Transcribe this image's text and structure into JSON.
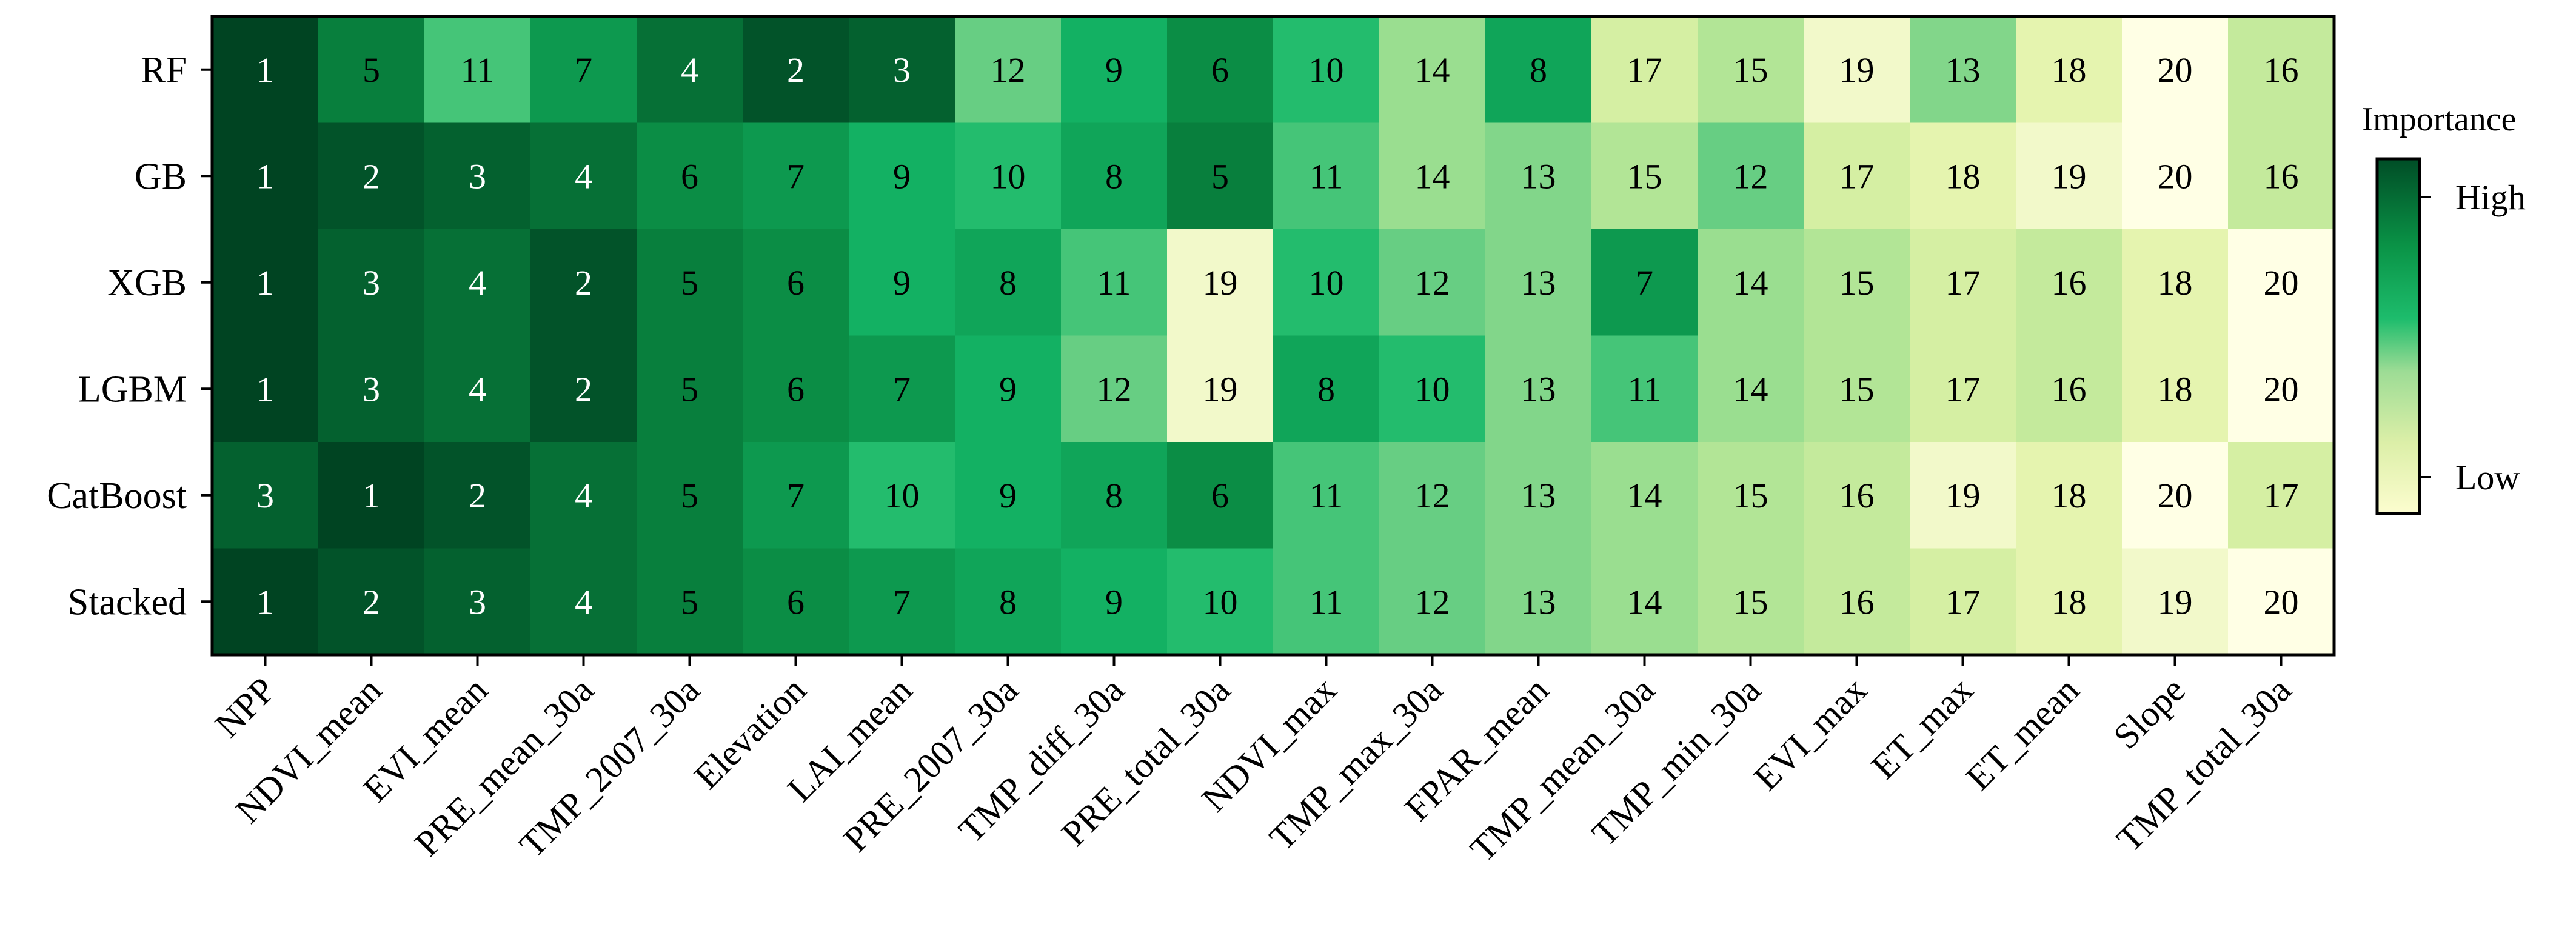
{
  "chart_data": {
    "type": "heatmap",
    "rows": [
      "RF",
      "GB",
      "XGB",
      "LGBM",
      "CatBoost",
      "Stacked"
    ],
    "columns": [
      "NPP",
      "NDVI_mean",
      "EVI_mean",
      "PRE_mean_30a",
      "TMP_2007_30a",
      "Elevation",
      "LAI_mean",
      "PRE_2007_30a",
      "TMP_diff_30a",
      "PRE_total_30a",
      "NDVI_max",
      "TMP_max_30a",
      "FPAR_mean",
      "TMP_mean_30a",
      "TMP_min_30a",
      "EVI_max",
      "ET_max",
      "ET_mean",
      "Slope",
      "TMP_total_30a"
    ],
    "values": [
      [
        1,
        5,
        11,
        7,
        4,
        2,
        3,
        12,
        9,
        6,
        10,
        14,
        8,
        17,
        15,
        19,
        13,
        18,
        20,
        16
      ],
      [
        1,
        2,
        3,
        4,
        6,
        7,
        9,
        10,
        8,
        5,
        11,
        14,
        13,
        15,
        12,
        17,
        18,
        19,
        20,
        16
      ],
      [
        1,
        3,
        4,
        2,
        5,
        6,
        9,
        8,
        11,
        19,
        10,
        12,
        13,
        7,
        14,
        15,
        17,
        16,
        18,
        20
      ],
      [
        1,
        3,
        4,
        2,
        5,
        6,
        7,
        9,
        12,
        19,
        8,
        10,
        13,
        11,
        14,
        15,
        17,
        16,
        18,
        20
      ],
      [
        3,
        1,
        2,
        4,
        5,
        7,
        10,
        9,
        8,
        6,
        11,
        12,
        13,
        14,
        15,
        16,
        19,
        18,
        20,
        17
      ],
      [
        1,
        2,
        3,
        4,
        5,
        6,
        7,
        8,
        9,
        10,
        11,
        12,
        13,
        14,
        15,
        16,
        17,
        18,
        19,
        20
      ]
    ],
    "value_range": [
      1,
      20
    ],
    "colormap": "Greens (high importance = dark green, low importance = pale yellow)",
    "colorbar": {
      "title": "Importance",
      "high_label": "High",
      "low_label": "Low"
    }
  }
}
